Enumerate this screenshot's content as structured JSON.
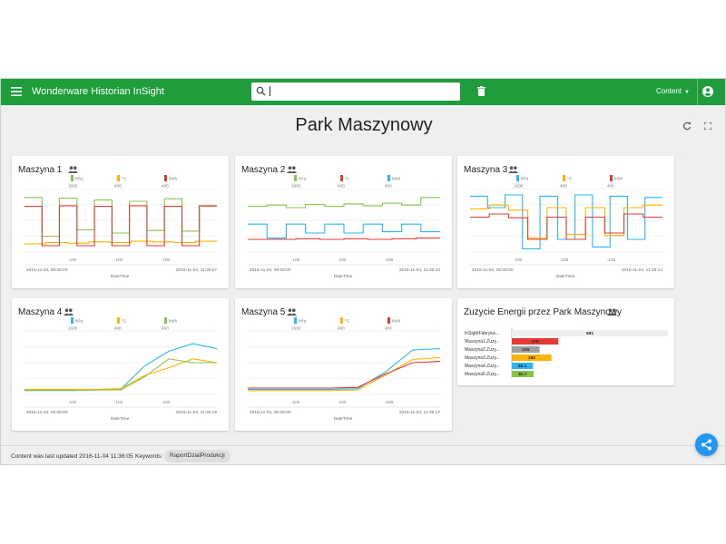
{
  "header": {
    "app_title": "Wonderware Historian InSight",
    "search_value": "",
    "content_menu_label": "Content",
    "bar_color": "#1f9d3c",
    "icons": [
      "menu-icon",
      "search-icon",
      "trash-icon",
      "account-icon"
    ]
  },
  "page": {
    "title": "Park Maszynowy",
    "icons": [
      "refresh-icon",
      "fullscreen-icon"
    ]
  },
  "colors": {
    "green": "#8bc34a",
    "red": "#e53935",
    "orange": "#ffb300",
    "blue": "#29b6f6"
  },
  "cards": [
    {
      "title": "Maszyna 1",
      "legend": [
        {
          "unit": "hPa",
          "max": "1600",
          "min": "-100",
          "color": "#8bc34a"
        },
        {
          "unit": "°C",
          "max": "400",
          "min": "-100",
          "color": "#ffb300"
        },
        {
          "unit": "kWh",
          "max": "400",
          "min": "-100",
          "color": "#e53935"
        }
      ],
      "x_start": "2016-11-04, 00:00:00",
      "x_end": "2016-11-04, 11:36:07",
      "x_label": "DateTime"
    },
    {
      "title": "Maszyna 2",
      "legend": [
        {
          "unit": "hPa",
          "max": "1600",
          "min": "-100",
          "color": "#8bc34a"
        },
        {
          "unit": "°C",
          "max": "400",
          "min": "-100",
          "color": "#e53935"
        },
        {
          "unit": "kWh",
          "max": "400",
          "min": "-100",
          "color": "#29b6f6"
        }
      ],
      "x_start": "2016-11-04, 00:00:00",
      "x_end": "2016-11-04, 11:36:10",
      "x_label": "DateTime"
    },
    {
      "title": "Maszyna 3",
      "legend": [
        {
          "unit": "hPa",
          "max": "1600",
          "min": "-100",
          "color": "#29b6f6"
        },
        {
          "unit": "°C",
          "max": "400",
          "min": "-100",
          "color": "#ffb300"
        },
        {
          "unit": "kWh",
          "max": "400",
          "min": "-100",
          "color": "#e53935"
        }
      ],
      "x_start": "2016-11-04, 00:00:00",
      "x_end": "2016-11-04, 11:36:14",
      "x_label": "DateTime"
    },
    {
      "title": "Maszyna 4",
      "legend": [
        {
          "unit": "hPa",
          "max": "1600",
          "min": "-100",
          "color": "#29b6f6"
        },
        {
          "unit": "°C",
          "max": "400",
          "min": "-100",
          "color": "#ffb300"
        },
        {
          "unit": "kWh",
          "max": "400",
          "min": "-100",
          "color": "#8bc34a"
        }
      ],
      "x_start": "2016-11-04, 00:00:00",
      "x_end": "2016-11-04, 11:36:15",
      "x_label": "DateTime"
    },
    {
      "title": "Maszyna 5",
      "legend": [
        {
          "unit": "hPa",
          "max": "1600",
          "min": "-100",
          "color": "#29b6f6"
        },
        {
          "unit": "°C",
          "max": "400",
          "min": "-100",
          "color": "#ffb300"
        },
        {
          "unit": "kWh",
          "max": "400",
          "min": "-100",
          "color": "#e53935"
        }
      ],
      "x_start": "2016-11-04, 00:00:00",
      "x_end": "2016-11-04, 11:36:17",
      "x_label": "DateTime"
    }
  ],
  "energy_card": {
    "title": "Zuzycie Energii przez Park Maszynowy"
  },
  "chart_data": [
    {
      "type": "line",
      "chart": "Maszyna 1",
      "series": [
        {
          "name": "hPa",
          "color": "#8bc34a",
          "shape": "step",
          "levels": [
            0.86,
            0.25,
            0.85,
            0.35,
            0.82,
            0.3,
            0.8,
            0.34,
            0.84,
            0.33,
            0.72
          ]
        },
        {
          "name": "°C",
          "color": "#ffb300",
          "shape": "steady",
          "levels": [
            0.13,
            0.15,
            0.14,
            0.16,
            0.15,
            0.17,
            0.16,
            0.15,
            0.17
          ]
        },
        {
          "name": "kWh",
          "color": "#e53935",
          "shape": "step",
          "levels": [
            0.72,
            0.1,
            0.73,
            0.1,
            0.72,
            0.1,
            0.73,
            0.1,
            0.72,
            0.1,
            0.73
          ]
        }
      ]
    },
    {
      "type": "line",
      "chart": "Maszyna 2",
      "series": [
        {
          "name": "hPa",
          "color": "#8bc34a",
          "shape": "steady",
          "levels": [
            0.72,
            0.74,
            0.7,
            0.75,
            0.72,
            0.76,
            0.73,
            0.77,
            0.74,
            0.86
          ]
        },
        {
          "name": "°C",
          "color": "#e53935",
          "shape": "steady",
          "levels": [
            0.2,
            0.2,
            0.21,
            0.2,
            0.21,
            0.2,
            0.21,
            0.22
          ]
        },
        {
          "name": "kWh",
          "color": "#29b6f6",
          "shape": "step",
          "levels": [
            0.44,
            0.22,
            0.44,
            0.3,
            0.44,
            0.3,
            0.44,
            0.32,
            0.44,
            0.32
          ]
        }
      ]
    },
    {
      "type": "line",
      "chart": "Maszyna 3",
      "series": [
        {
          "name": "hPa",
          "color": "#29b6f6",
          "shape": "step",
          "levels": [
            0.88,
            0.7,
            0.9,
            0.05,
            0.88,
            0.2,
            0.9,
            0.08,
            0.88,
            0.2,
            0.86
          ]
        },
        {
          "name": "°C",
          "color": "#ffb300",
          "shape": "step",
          "levels": [
            0.68,
            0.74,
            0.66,
            0.22,
            0.7,
            0.28,
            0.7,
            0.26,
            0.7,
            0.74
          ]
        },
        {
          "name": "kWh",
          "color": "#e53935",
          "shape": "step",
          "levels": [
            0.55,
            0.6,
            0.54,
            0.2,
            0.55,
            0.2,
            0.55,
            0.3,
            0.6,
            0.55
          ]
        }
      ]
    },
    {
      "type": "line",
      "chart": "Maszyna 4",
      "series": [
        {
          "name": "hPa",
          "color": "#29b6f6",
          "shape": "jump",
          "levels": [
            0.07,
            0.07,
            0.07,
            0.07,
            0.08,
            0.45,
            0.68,
            0.8,
            0.72
          ]
        },
        {
          "name": "°C",
          "color": "#ffb300",
          "shape": "jump",
          "levels": [
            0.08,
            0.08,
            0.08,
            0.08,
            0.09,
            0.3,
            0.42,
            0.56,
            0.5
          ]
        },
        {
          "name": "kWh",
          "color": "#8bc34a",
          "shape": "jump",
          "levels": [
            0.06,
            0.06,
            0.06,
            0.07,
            0.07,
            0.28,
            0.56,
            0.5,
            0.5
          ]
        }
      ]
    },
    {
      "type": "line",
      "chart": "Maszyna 5",
      "series": [
        {
          "name": "hPa",
          "color": "#29b6f6",
          "shape": "jump",
          "levels": [
            0.08,
            0.08,
            0.08,
            0.08,
            0.09,
            0.35,
            0.7,
            0.72
          ]
        },
        {
          "name": "°C",
          "color": "#ffb300",
          "shape": "jump",
          "levels": [
            0.06,
            0.06,
            0.06,
            0.06,
            0.07,
            0.3,
            0.55,
            0.58
          ]
        },
        {
          "name": "kWh",
          "color": "#e53935",
          "shape": "jump",
          "levels": [
            0.1,
            0.1,
            0.1,
            0.1,
            0.11,
            0.32,
            0.5,
            0.52
          ]
        }
      ]
    },
    {
      "type": "bar",
      "chart": "Zuzycie Energii przez Park Maszynowy",
      "orientation": "horizontal",
      "categories": [
        "InSightFabryka...",
        "Maszyna1.Zuzy...",
        "Maszyna2.Zuzy...",
        "Maszyna3.Zuzy...",
        "Maszyna4.Zuzy...",
        "Maszyna5.Zuzy..."
      ],
      "values": [
        591,
        176,
        105,
        150,
        80.1,
        82.7
      ],
      "labels": [
        "591",
        "176",
        "105",
        "150",
        "80.1",
        "82.7"
      ],
      "colors": [
        "#eeeeee",
        "#e53935",
        "#9e9e9e",
        "#ffb300",
        "#29b6f6",
        "#8bc34a"
      ],
      "xlim": [
        0,
        591
      ]
    }
  ],
  "footer": {
    "updated_text": "Content was last updated 2016-11-04 11:36:05",
    "keywords_label": "Keywords:",
    "keyword": "RaportDzialProdukcji"
  }
}
